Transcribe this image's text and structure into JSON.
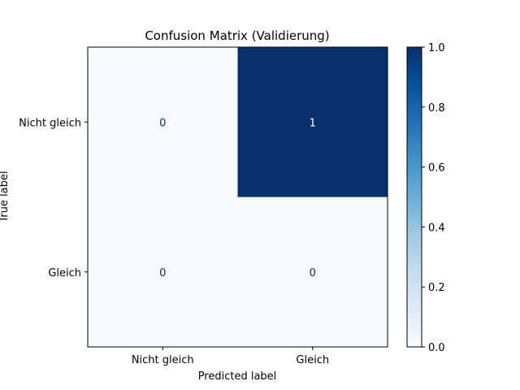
{
  "chart_data": {
    "type": "heatmap",
    "title": "Confusion Matrix (Validierung)",
    "xlabel": "Predicted label",
    "ylabel": "True label",
    "x_categories": [
      "Nicht gleich",
      "Gleich"
    ],
    "y_categories": [
      "Nicht gleich",
      "Gleich"
    ],
    "values": [
      [
        0,
        1
      ],
      [
        0,
        0
      ]
    ],
    "colorbar": {
      "range": [
        0.0,
        1.0
      ],
      "ticks": [
        "0.0",
        "0.2",
        "0.4",
        "0.6",
        "0.8",
        "1.0"
      ],
      "colormap": "Blues",
      "low_color": "#f7fbff",
      "high_color": "#08306b"
    },
    "cell_text_dark": "#08306b",
    "cell_text_light": "#ffffff"
  }
}
